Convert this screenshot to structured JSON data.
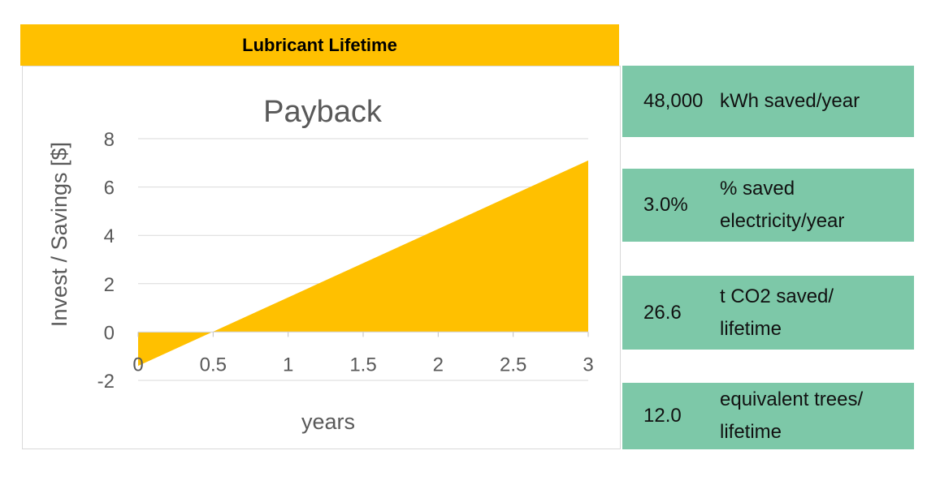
{
  "header": {
    "title": "Lubricant Lifetime"
  },
  "chart_data": {
    "type": "area",
    "title": "Payback",
    "xlabel": "years",
    "ylabel": "Invest / Savings [$]",
    "x": [
      0,
      3
    ],
    "series": [
      {
        "values": [
          -1.4,
          7.1
        ]
      }
    ],
    "xticks": [
      "0",
      "0.5",
      "1",
      "1.5",
      "2",
      "2.5",
      "3"
    ],
    "yticks": [
      "-2",
      "0",
      "2",
      "4",
      "6",
      "8"
    ],
    "xlim": [
      0,
      3
    ],
    "ylim": [
      -2,
      8
    ],
    "grid": true,
    "legend": "none",
    "fill_color": "#FFC000"
  },
  "stats": [
    {
      "value": "48,000",
      "label": "kWh saved/year"
    },
    {
      "value": "3.0%",
      "label": " % saved\nelectricity/year"
    },
    {
      "value": "26.6",
      "label": "t CO2 saved/\nlifetime"
    },
    {
      "value": "12.0",
      "label": "equivalent trees/\nlifetime"
    }
  ],
  "colors": {
    "header": "#FFC000",
    "stat_bg": "#7DC8A8",
    "area": "#FFC000"
  }
}
